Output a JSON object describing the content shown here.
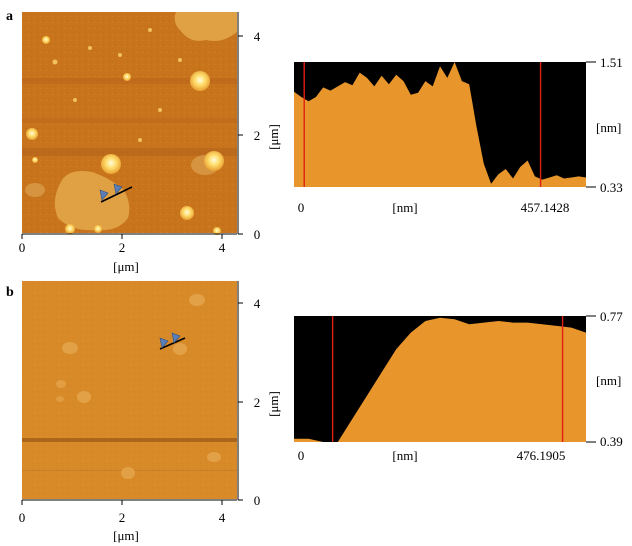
{
  "panels": [
    {
      "letter": "a",
      "afm": {
        "xticks": [
          "0",
          "2",
          "4"
        ],
        "yticks": [
          "0",
          "2",
          "4"
        ],
        "xlabel": "[μm]",
        "ylabel": "[μm]"
      },
      "profile": {
        "x_start": "0",
        "x_end": "457.1428",
        "x_unit": "[nm]",
        "y_top": "1.51",
        "y_bottom": "0.33",
        "y_unit": "[nm]"
      }
    },
    {
      "letter": "b",
      "afm": {
        "xticks": [
          "0",
          "2",
          "4"
        ],
        "yticks": [
          "0",
          "2",
          "4"
        ],
        "xlabel": "[μm]",
        "ylabel": "[μm]"
      },
      "profile": {
        "x_start": "0",
        "x_end": "476.1905",
        "x_unit": "[nm]",
        "y_top": "0.77",
        "y_bottom": "0.39",
        "y_unit": "[nm]"
      }
    }
  ],
  "colors": {
    "afm_a": "#c8741c",
    "afm_b": "#d98a28",
    "profile_fill": "#e8952c",
    "profile_bg": "#000000",
    "cursor": "#e02010",
    "marker": "#5a7fb8"
  },
  "chart_data": [
    {
      "type": "area",
      "panel": "a",
      "xlabel": "[nm]",
      "ylabel": "[nm]",
      "xlim": [
        0,
        457.1428
      ],
      "ylim": [
        0.33,
        1.51
      ],
      "x": [
        0,
        11.4,
        22.9,
        34.3,
        45.7,
        57.1,
        68.6,
        80,
        91.4,
        102.9,
        114.3,
        125.7,
        137.1,
        148.6,
        160,
        171.4,
        182.9,
        194.3,
        205.7,
        217.1,
        228.6,
        240,
        251.4,
        262.9,
        274.3,
        285.7,
        297.1,
        308.6,
        320,
        331.4,
        342.9,
        354.3,
        365.7,
        377.1,
        388.6,
        400,
        411.4,
        422.9,
        434.3,
        445.7,
        457.1
      ],
      "y": [
        1.23,
        1.18,
        1.14,
        1.18,
        1.27,
        1.24,
        1.28,
        1.32,
        1.29,
        1.41,
        1.36,
        1.28,
        1.38,
        1.3,
        1.39,
        1.33,
        1.2,
        1.22,
        1.33,
        1.28,
        1.47,
        1.36,
        1.51,
        1.33,
        1.3,
        0.9,
        0.55,
        0.36,
        0.45,
        0.5,
        0.41,
        0.52,
        0.58,
        0.43,
        0.4,
        0.42,
        0.44,
        0.41,
        0.42,
        0.43,
        0.42
      ],
      "cursors_x": [
        16,
        386
      ]
    },
    {
      "type": "area",
      "panel": "b",
      "xlabel": "[nm]",
      "ylabel": "[nm]",
      "xlim": [
        0,
        476.1905
      ],
      "ylim": [
        0.39,
        0.77
      ],
      "x": [
        0,
        23.8,
        47.6,
        71.4,
        95.2,
        119,
        142.9,
        166.7,
        190.5,
        214.3,
        238.1,
        261.9,
        285.7,
        309.5,
        333.3,
        357.1,
        381,
        404.8,
        428.6,
        452.4,
        476.2
      ],
      "y": [
        0.4,
        0.4,
        0.39,
        0.39,
        0.46,
        0.53,
        0.6,
        0.67,
        0.72,
        0.755,
        0.765,
        0.76,
        0.745,
        0.75,
        0.755,
        0.75,
        0.75,
        0.745,
        0.74,
        0.735,
        0.72
      ],
      "cursors_x": [
        63,
        438
      ]
    }
  ]
}
